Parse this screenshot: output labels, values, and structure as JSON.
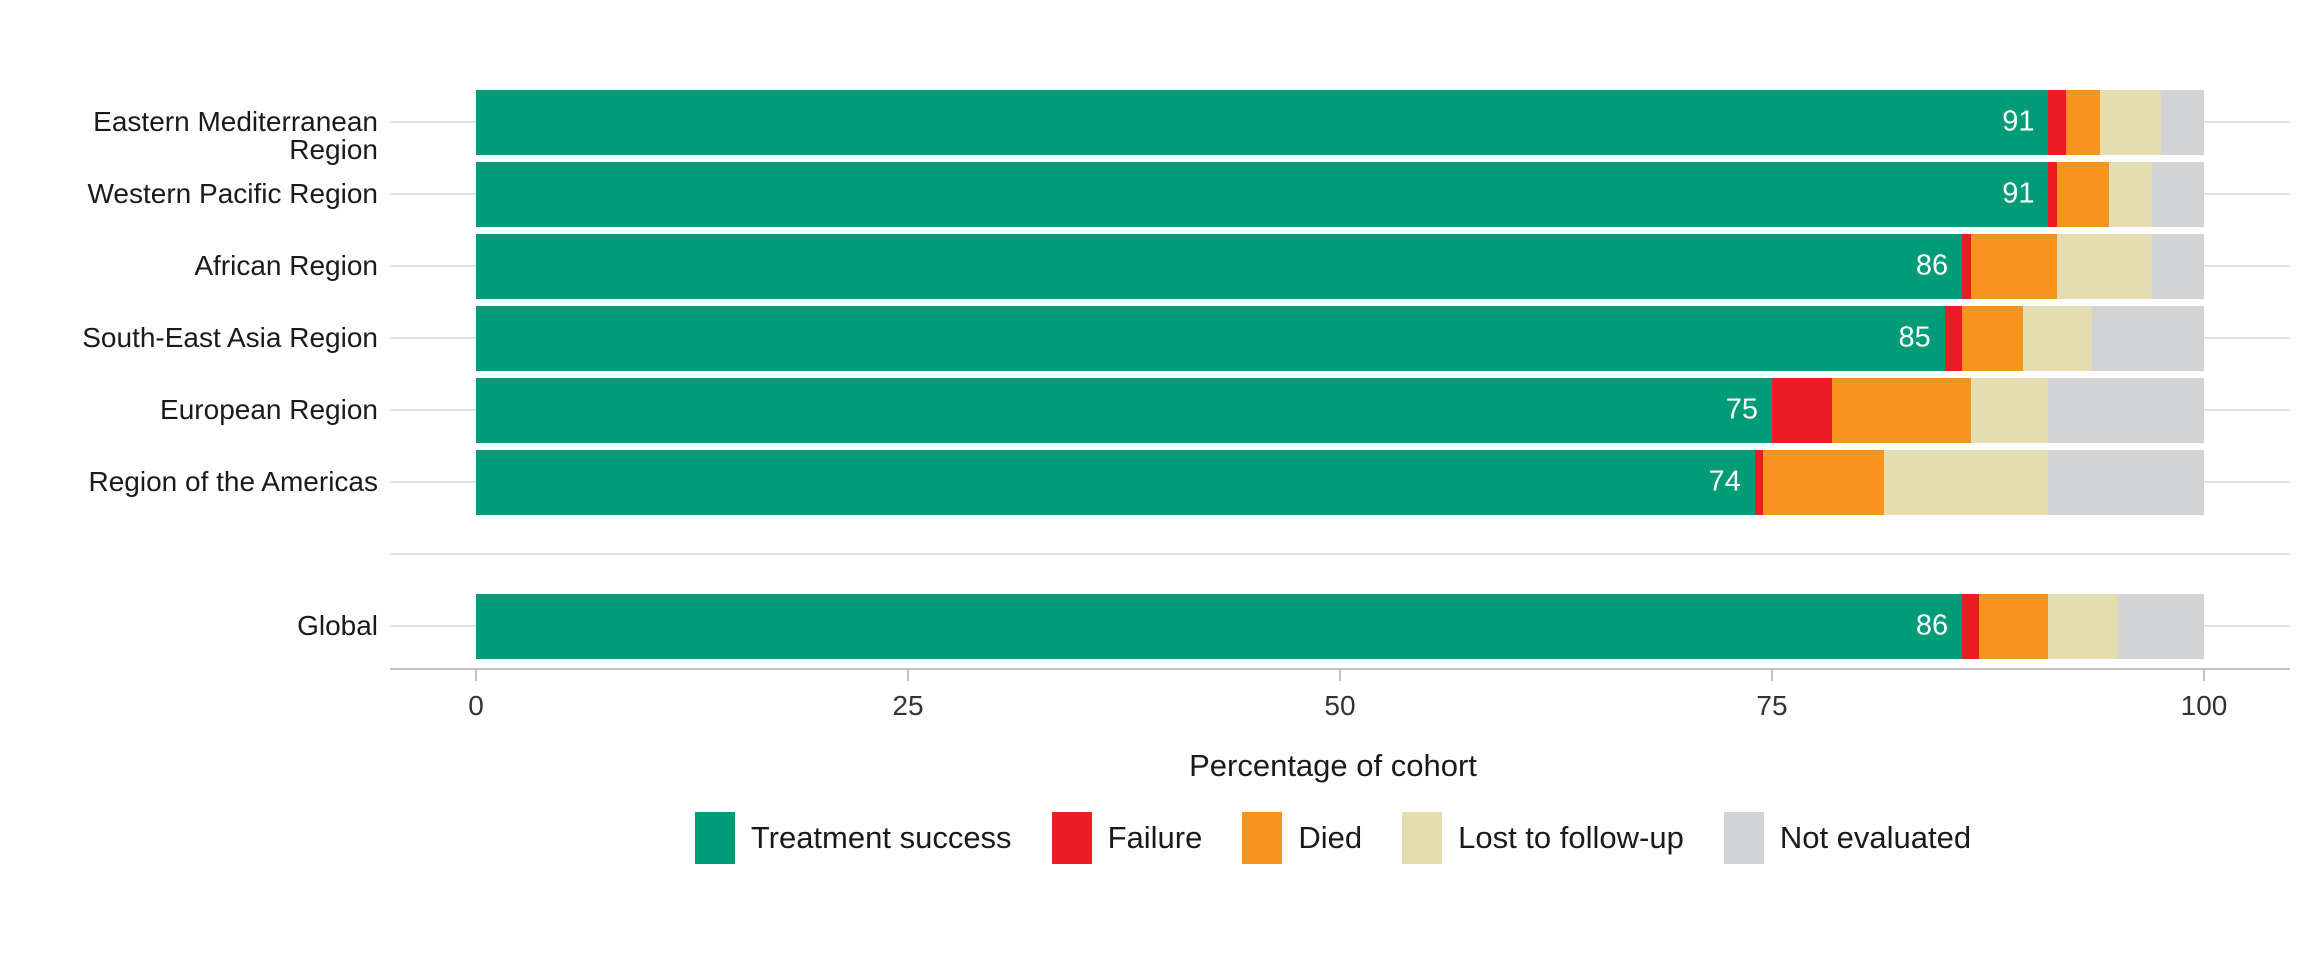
{
  "chart_data": {
    "type": "bar",
    "orientation": "horizontal",
    "stacked": true,
    "title": "",
    "xlabel": "Percentage of cohort",
    "ylabel": "",
    "xlim": [
      0,
      100
    ],
    "x_ticks": [
      "0",
      "25",
      "50",
      "75",
      "100"
    ],
    "grid": "category gridlines only",
    "legend_position": "bottom",
    "series": [
      {
        "name": "Treatment success",
        "color": "#009c77"
      },
      {
        "name": "Failure",
        "color": "#ec1c24"
      },
      {
        "name": "Died",
        "color": "#f7941e"
      },
      {
        "name": "Lost to follow-up",
        "color": "#e4ddb0"
      },
      {
        "name": "Not evaluated",
        "color": "#d2d3d4"
      }
    ],
    "categories": [
      "Eastern Mediterranean Region",
      "Western Pacific Region",
      "African Region",
      "South-East Asia Region",
      "European Region",
      "Region of the Americas",
      "Global"
    ],
    "rows": [
      {
        "category": "Eastern Mediterranean Region",
        "group": "region",
        "values": [
          91,
          1,
          2,
          3.5,
          2.5
        ],
        "value_label": "91"
      },
      {
        "category": "Western Pacific Region",
        "group": "region",
        "values": [
          91,
          0.5,
          3,
          2.5,
          3
        ],
        "value_label": "91"
      },
      {
        "category": "African Region",
        "group": "region",
        "values": [
          86,
          0.5,
          5,
          5.5,
          3
        ],
        "value_label": "86"
      },
      {
        "category": "South-East Asia Region",
        "group": "region",
        "values": [
          85,
          1,
          3.5,
          4,
          6.5
        ],
        "value_label": "85"
      },
      {
        "category": "European Region",
        "group": "region",
        "values": [
          75,
          3.5,
          8,
          4.5,
          9
        ],
        "value_label": "75"
      },
      {
        "category": "Region of the Americas",
        "group": "region",
        "values": [
          74,
          0.5,
          7,
          9.5,
          9
        ],
        "value_label": "74"
      },
      {
        "category": "Global",
        "group": "global",
        "values": [
          86,
          1,
          4,
          4,
          5
        ],
        "value_label": "86"
      }
    ]
  },
  "colors": {
    "gridline": "#e2e2e2",
    "axis": "#c2c2c2",
    "tick_label": "#333333",
    "text": "#1a1a1a",
    "bar_value_text": "#ffffff"
  }
}
